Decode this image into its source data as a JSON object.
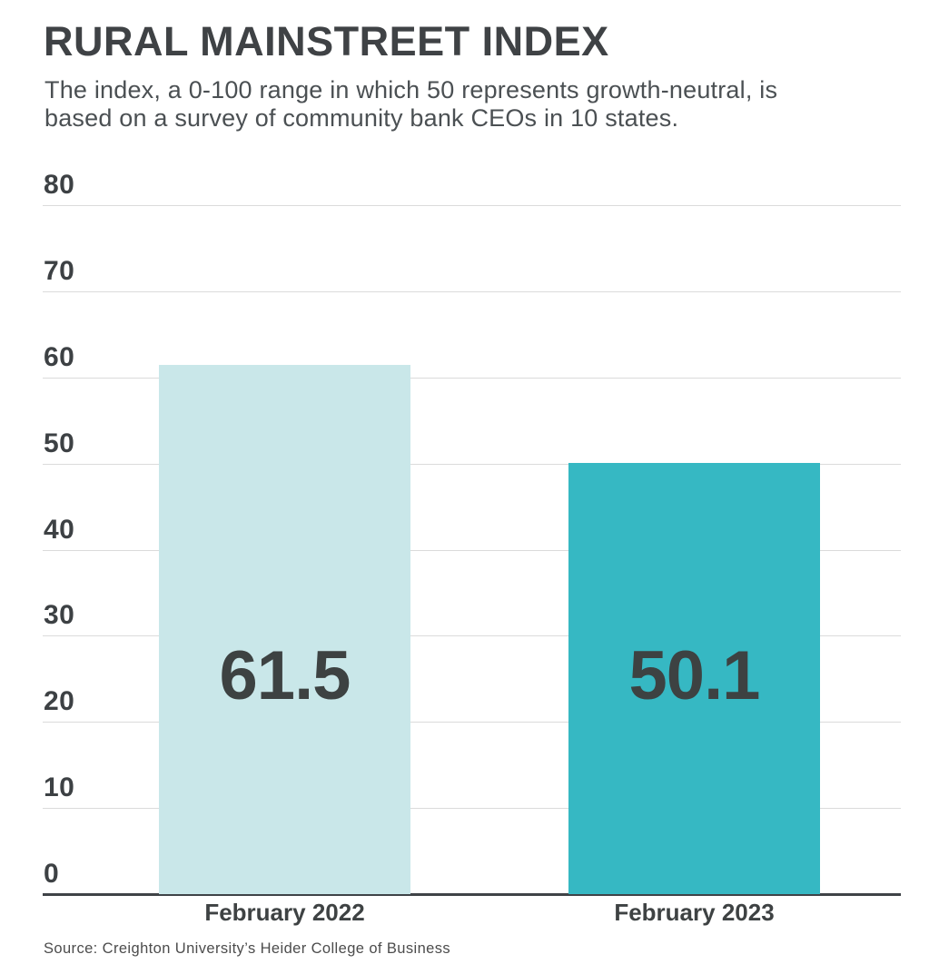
{
  "chart_data": {
    "type": "bar",
    "title": "RURAL MAINSTREET INDEX",
    "subtitle_lines": [
      "The index, a 0-100 range in which 50 represents growth-neutral, is",
      "based on a survey of community bank CEOs in 10 states."
    ],
    "categories": [
      "February 2022",
      "February 2023"
    ],
    "values": [
      61.5,
      50.1
    ],
    "value_labels": [
      "61.5",
      "50.1"
    ],
    "bar_colors": [
      "#c9e7e9",
      "#36b8c3"
    ],
    "y_ticks": [
      0,
      10,
      20,
      30,
      40,
      50,
      60,
      70,
      80
    ],
    "ylim": [
      0,
      80
    ],
    "xlabel": "",
    "ylabel": "",
    "grid": true,
    "legend": "none",
    "source": "Source: Creighton University’s Heider College of Business",
    "colors": {
      "title": "#3f4245",
      "subtitle": "#4b5053",
      "tick_label": "#3d4144",
      "gridline": "#dbdbdb",
      "axis_line": "#3f4347",
      "value_label": "#3d4242",
      "category_label": "#3e4243",
      "source": "#4c4c4c",
      "background": "#ffffff"
    }
  }
}
